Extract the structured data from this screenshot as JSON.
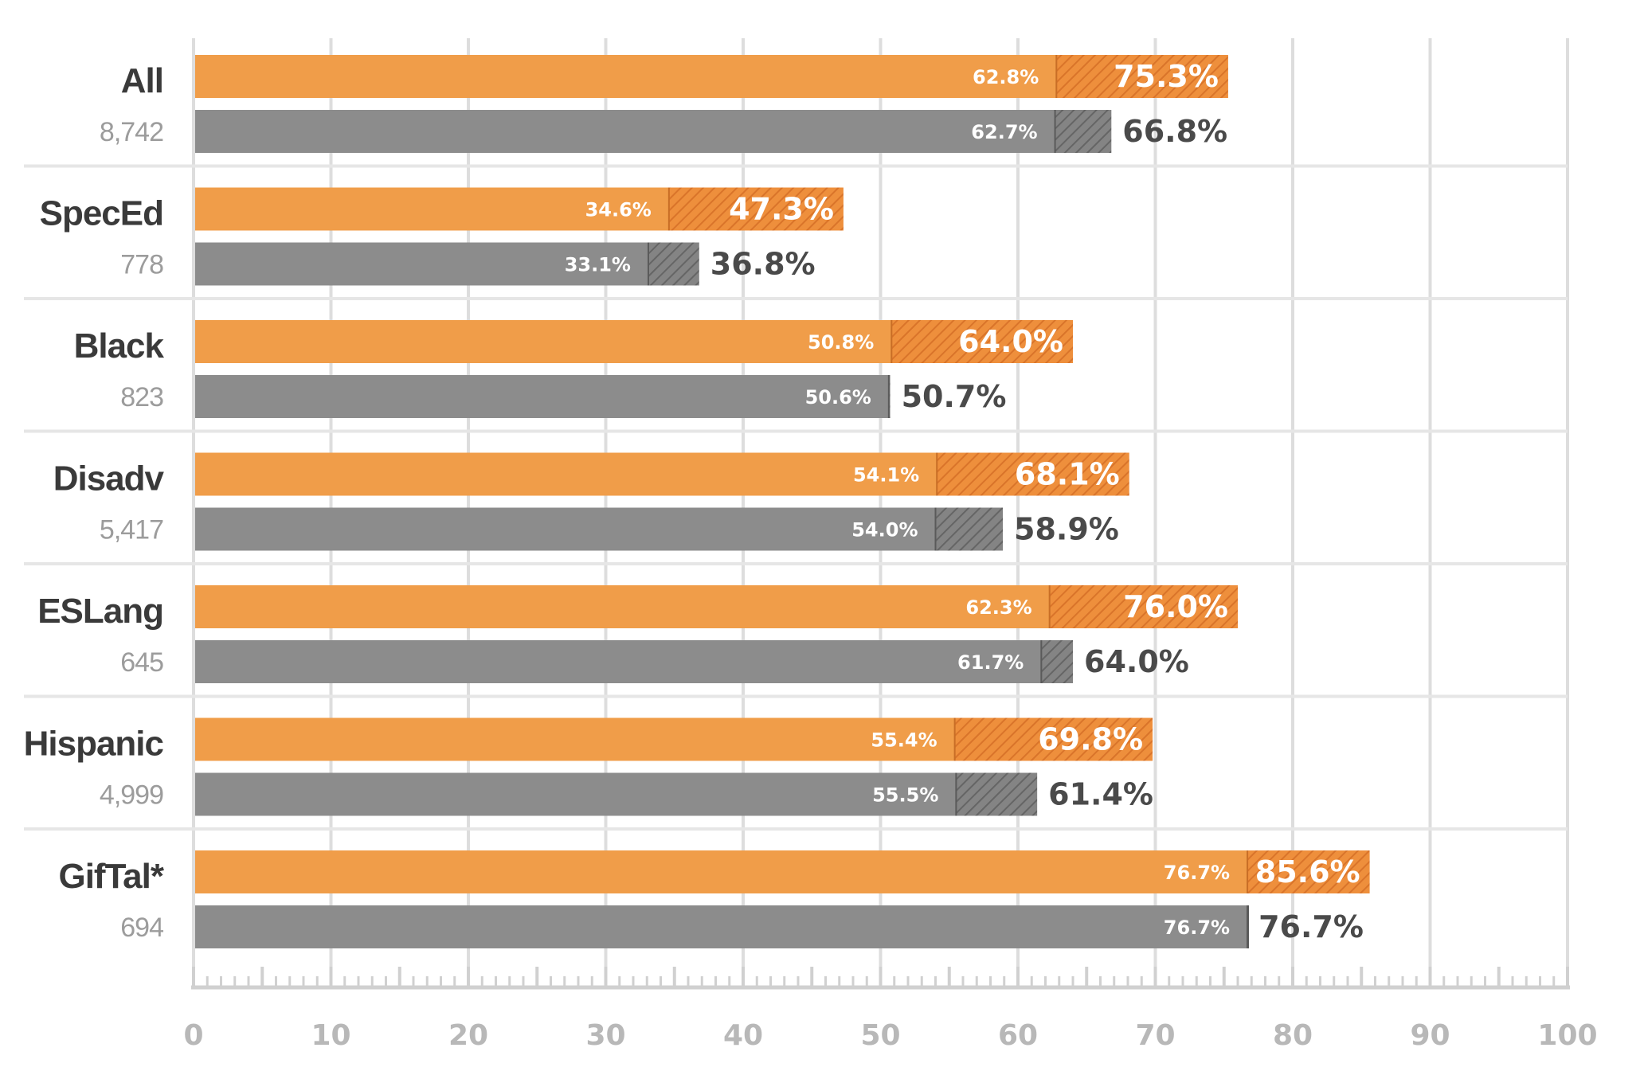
{
  "chart_data": {
    "type": "bar",
    "orientation": "horizontal",
    "xlim": [
      0,
      100
    ],
    "x_ticks": [
      "0",
      "10",
      "20",
      "30",
      "40",
      "50",
      "60",
      "70",
      "80",
      "90",
      "100"
    ],
    "series_colors": {
      "orange": "#F09D49",
      "gray": "#8C8C8C"
    },
    "categories": [
      {
        "label": "All",
        "n": "8,742",
        "orange": {
          "base": 62.8,
          "total": 75.3,
          "base_label": "62.8%",
          "total_label": "75.3%"
        },
        "gray": {
          "base": 62.7,
          "total": 66.8,
          "base_label": "62.7%",
          "total_label": "66.8%"
        }
      },
      {
        "label": "SpecEd",
        "n": "778",
        "orange": {
          "base": 34.6,
          "total": 47.3,
          "base_label": "34.6%",
          "total_label": "47.3%"
        },
        "gray": {
          "base": 33.1,
          "total": 36.8,
          "base_label": "33.1%",
          "total_label": "36.8%"
        }
      },
      {
        "label": "Black",
        "n": "823",
        "orange": {
          "base": 50.8,
          "total": 64.0,
          "base_label": "50.8%",
          "total_label": "64.0%"
        },
        "gray": {
          "base": 50.6,
          "total": 50.7,
          "base_label": "50.6%",
          "total_label": "50.7%"
        }
      },
      {
        "label": "Disadv",
        "n": "5,417",
        "orange": {
          "base": 54.1,
          "total": 68.1,
          "base_label": "54.1%",
          "total_label": "68.1%"
        },
        "gray": {
          "base": 54.0,
          "total": 58.9,
          "base_label": "54.0%",
          "total_label": "58.9%"
        }
      },
      {
        "label": "ESLang",
        "n": "645",
        "orange": {
          "base": 62.3,
          "total": 76.0,
          "base_label": "62.3%",
          "total_label": "76.0%"
        },
        "gray": {
          "base": 61.7,
          "total": 64.0,
          "base_label": "61.7%",
          "total_label": "64.0%"
        }
      },
      {
        "label": "Hispanic",
        "n": "4,999",
        "orange": {
          "base": 55.4,
          "total": 69.8,
          "base_label": "55.4%",
          "total_label": "69.8%"
        },
        "gray": {
          "base": 55.5,
          "total": 61.4,
          "base_label": "55.5%",
          "total_label": "61.4%"
        }
      },
      {
        "label": "GifTal*",
        "n": "694",
        "orange": {
          "base": 76.7,
          "total": 85.6,
          "base_label": "76.7%",
          "total_label": "85.6%"
        },
        "gray": {
          "base": 76.7,
          "total": 76.7,
          "base_label": "76.7%",
          "total_label": "76.7%"
        }
      }
    ]
  }
}
